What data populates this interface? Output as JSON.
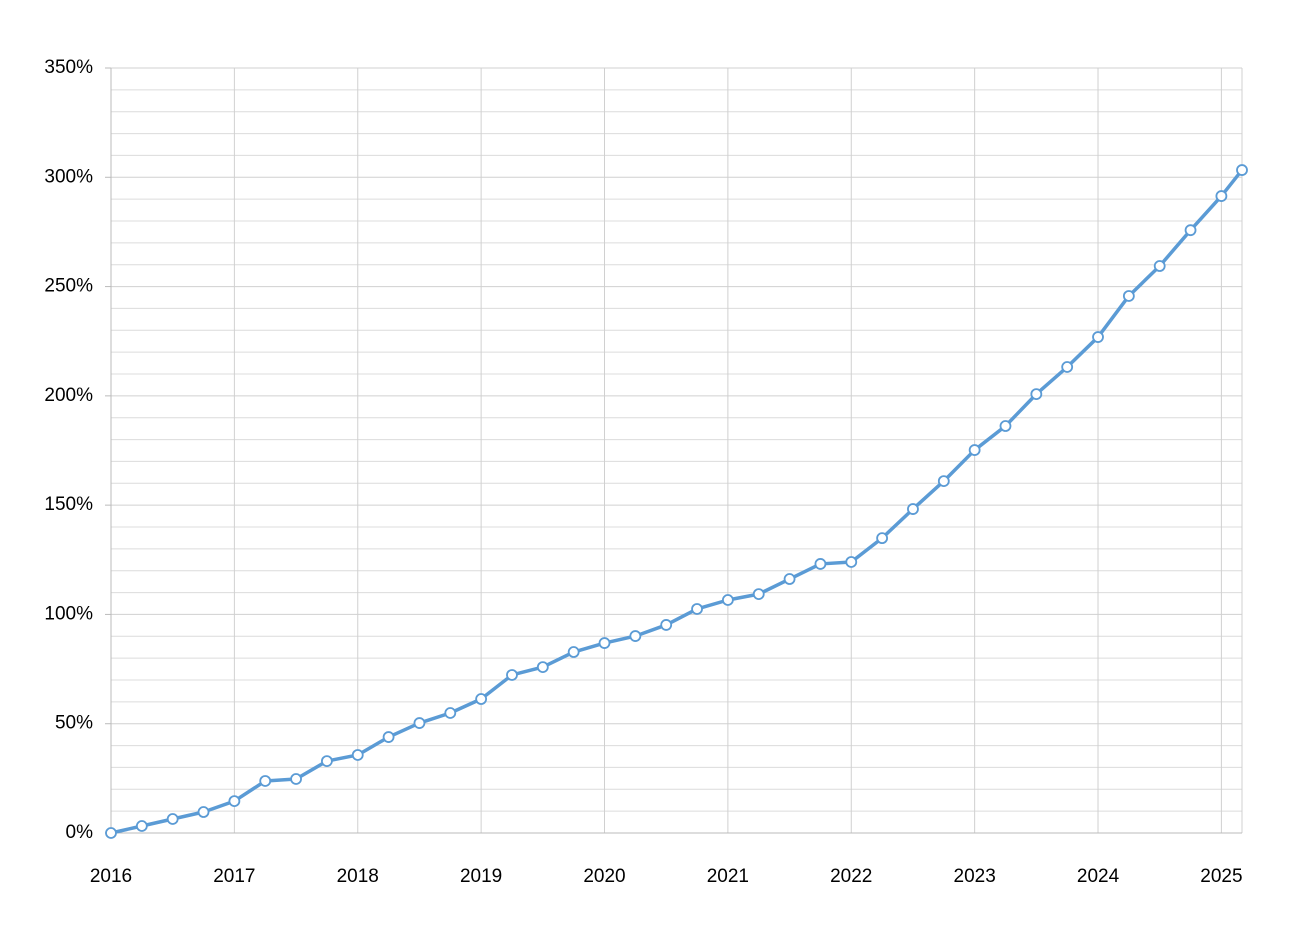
{
  "chart_data": {
    "type": "line",
    "x": [
      2016,
      2016.25,
      2016.5,
      2016.75,
      2017,
      2017.25,
      2017.5,
      2017.75,
      2018,
      2018.25,
      2018.5,
      2018.75,
      2019,
      2019.25,
      2019.5,
      2019.75,
      2020,
      2020.25,
      2020.5,
      2020.75,
      2021,
      2021.25,
      2021.5,
      2021.75,
      2022,
      2022.25,
      2022.5,
      2022.75,
      2023,
      2023.25,
      2023.5,
      2023.75,
      2024,
      2024.25,
      2024.5,
      2024.75,
      2025,
      2025.167
    ],
    "series": [
      {
        "color": "#5b9bd5",
        "values": [
          0,
          3.2,
          6.4,
          9.6,
          14.6,
          23.8,
          24.7,
          32.9,
          35.7,
          43.9,
          50.3,
          54.9,
          61.3,
          72.3,
          75.9,
          82.8,
          86.9,
          90.1,
          95.2,
          102.5,
          106.6,
          109.3,
          116.2,
          123.1,
          124.0,
          134.9,
          148.2,
          161.0,
          175.2,
          186.2,
          200.8,
          213.2,
          226.9,
          245.7,
          259.4,
          275.8,
          291.4,
          303.3
        ]
      }
    ],
    "xlim": [
      2016,
      2025.167
    ],
    "xticks": [
      2016,
      2017,
      2018,
      2019,
      2020,
      2021,
      2022,
      2023,
      2024,
      2025
    ],
    "ylim": [
      0,
      350
    ],
    "yticks": [
      {
        "value": 0,
        "label": "0%"
      },
      {
        "value": 50,
        "label": "50%"
      },
      {
        "value": 100,
        "label": "100%"
      },
      {
        "value": 150,
        "label": "150%"
      },
      {
        "value": 200,
        "label": "200%"
      },
      {
        "value": 250,
        "label": "250%"
      },
      {
        "value": 300,
        "label": "300%"
      },
      {
        "value": 350,
        "label": "350%"
      }
    ],
    "yminorticks": [
      10,
      20,
      30,
      40,
      60,
      70,
      80,
      90,
      110,
      120,
      130,
      140,
      160,
      170,
      180,
      190,
      210,
      220,
      230,
      240,
      260,
      270,
      280,
      290,
      310,
      320,
      330,
      340
    ],
    "grid": true
  }
}
